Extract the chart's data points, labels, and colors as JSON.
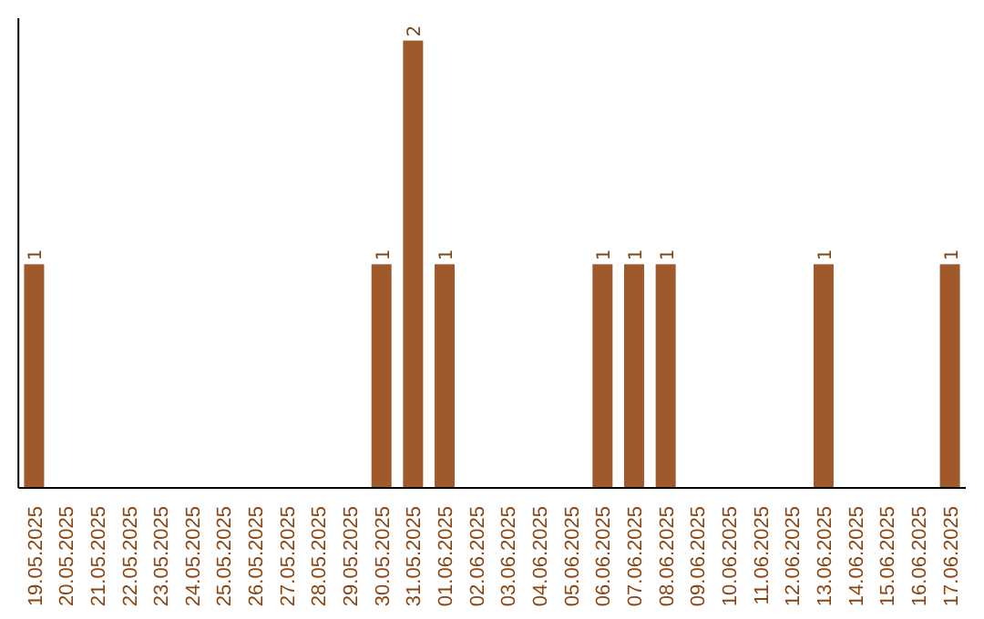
{
  "chart_data": {
    "type": "bar",
    "categories": [
      "19.05.2025",
      "20.05.2025",
      "21.05.2025",
      "22.05.2025",
      "23.05.2025",
      "24.05.2025",
      "25.05.2025",
      "26.05.2025",
      "27.05.2025",
      "28.05.2025",
      "29.05.2025",
      "30.05.2025",
      "31.05.2025",
      "01.06.2025",
      "02.06.2025",
      "03.06.2025",
      "04.06.2025",
      "05.06.2025",
      "06.06.2025",
      "07.06.2025",
      "08.06.2025",
      "09.06.2025",
      "10.06.2025",
      "11.06.2025",
      "12.06.2025",
      "13.06.2025",
      "14.06.2025",
      "15.06.2025",
      "16.06.2025",
      "17.06.2025"
    ],
    "values": [
      1,
      0,
      0,
      0,
      0,
      0,
      0,
      0,
      0,
      0,
      0,
      1,
      2,
      1,
      0,
      0,
      0,
      0,
      1,
      1,
      1,
      0,
      0,
      0,
      0,
      1,
      0,
      0,
      0,
      1
    ],
    "value_labels": [
      "1",
      null,
      null,
      null,
      null,
      null,
      null,
      null,
      null,
      null,
      null,
      "1",
      "2",
      "1",
      null,
      null,
      null,
      null,
      "1",
      "1",
      "1",
      null,
      null,
      null,
      null,
      "1",
      null,
      null,
      null,
      "1"
    ],
    "color": "#a0592a",
    "tick_labels": "x"
  }
}
